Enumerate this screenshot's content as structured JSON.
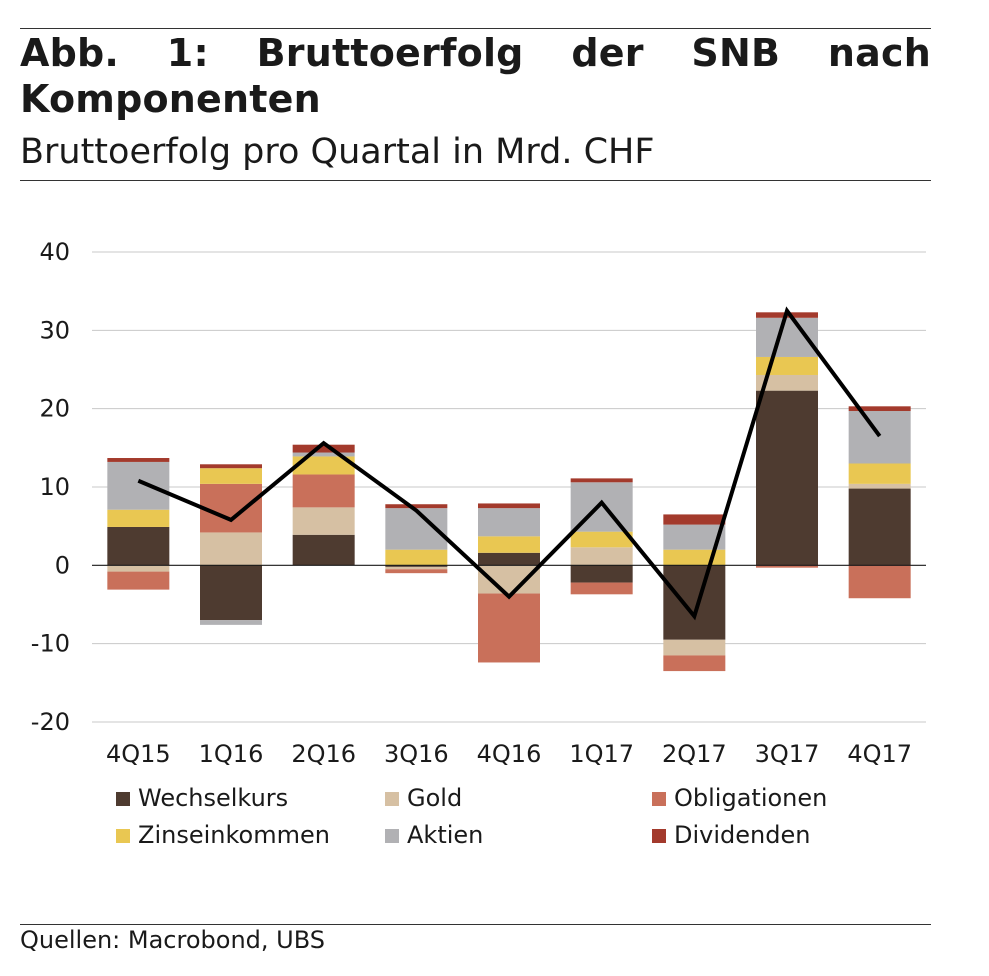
{
  "header": {
    "title": "Abb. 1: Bruttoerfolg der SNB nach Komponenten",
    "subtitle": "Bruttoerfolg pro Quartal in Mrd. CHF"
  },
  "footer": {
    "source": "Quellen: Macrobond, UBS"
  },
  "colors": {
    "Wechselkurs": "#4e3b30",
    "Gold": "#d6c0a3",
    "Obligationen": "#c9705a",
    "Zinseinkommen": "#e9c752",
    "Aktien": "#b1b1b4",
    "Dividenden": "#a33a2c",
    "total_line": "#000000",
    "gridline": "#c8c8c8"
  },
  "chart_data": {
    "type": "bar",
    "stacked": true,
    "categories": [
      "4Q15",
      "1Q16",
      "2Q16",
      "3Q16",
      "4Q16",
      "1Q17",
      "2Q17",
      "3Q17",
      "4Q17"
    ],
    "ylim": [
      -20,
      40
    ],
    "yticks": [
      -20,
      -10,
      0,
      10,
      20,
      30,
      40
    ],
    "grid": true,
    "legend_position": "bottom",
    "series": [
      {
        "name": "Wechselkurs",
        "values": [
          4.9,
          -7.0,
          3.9,
          -0.2,
          1.6,
          -2.2,
          -9.5,
          22.3,
          9.8
        ]
      },
      {
        "name": "Gold",
        "values": [
          -0.8,
          4.2,
          3.5,
          -0.3,
          -3.6,
          2.3,
          -2.0,
          2.0,
          0.6
        ]
      },
      {
        "name": "Obligationen",
        "values": [
          -2.3,
          6.2,
          4.2,
          -0.5,
          -8.8,
          -1.5,
          -2.0,
          -0.3,
          -4.2
        ]
      },
      {
        "name": "Zinseinkommen",
        "values": [
          2.2,
          2.0,
          2.3,
          2.0,
          2.1,
          2.0,
          2.0,
          2.3,
          2.6
        ]
      },
      {
        "name": "Aktien",
        "values": [
          6.1,
          -0.6,
          0.5,
          5.3,
          3.6,
          6.3,
          3.2,
          5.0,
          6.7
        ]
      },
      {
        "name": "Dividenden",
        "values": [
          0.5,
          0.5,
          1.0,
          0.5,
          0.6,
          0.5,
          1.3,
          0.7,
          0.6
        ]
      }
    ],
    "total": {
      "values": [
        10.8,
        5.8,
        15.6,
        7.0,
        -4.0,
        8.0,
        -6.5,
        32.5,
        16.5
      ]
    }
  }
}
